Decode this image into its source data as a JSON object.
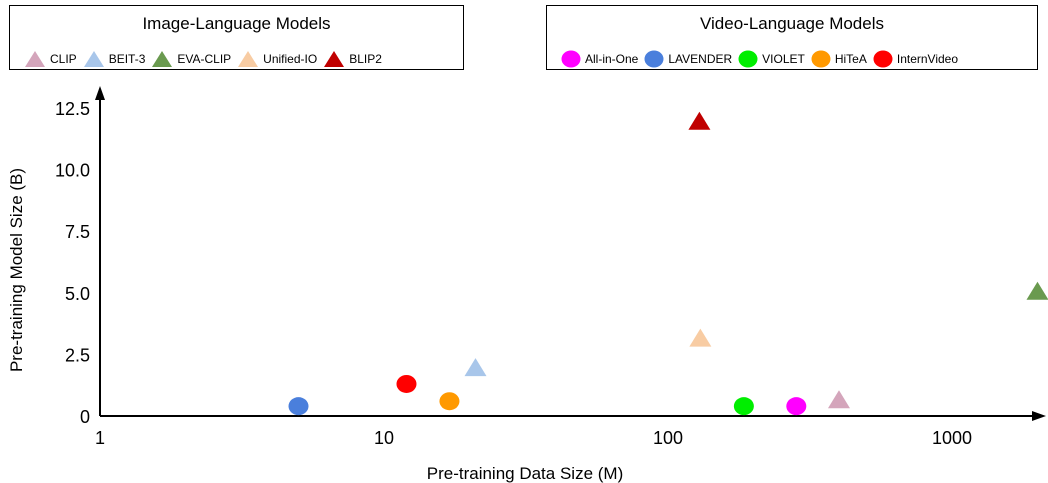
{
  "chart_data": {
    "type": "scatter",
    "xlabel": "Pre-training Data Size (M)",
    "ylabel": "Pre-training Model Size (B)",
    "x_scale": "log",
    "xlim": [
      1,
      2200
    ],
    "ylim": [
      0,
      12.5
    ],
    "x_ticks": [
      1,
      10,
      100,
      1000
    ],
    "x_tick_labels": [
      "1",
      "10",
      "100",
      "1000"
    ],
    "y_ticks": [
      0,
      2.5,
      5.0,
      7.5,
      10.0,
      12.5
    ],
    "y_tick_labels": [
      "0",
      "2.5",
      "5.0",
      "7.5",
      "10.0",
      "12.5"
    ],
    "grid": false,
    "legend_groups": [
      {
        "title": "Image-Language Models",
        "placement": "top-left",
        "marker": "triangle",
        "series": [
          "CLIP",
          "BEIT-3",
          "EVA-CLIP",
          "Unified-IO",
          "BLIP2"
        ]
      },
      {
        "title": "Video-Language Models",
        "placement": "top-right",
        "marker": "circle",
        "series": [
          "All-in-One",
          "LAVENDER",
          "VIOLET",
          "HiTeA",
          "InternVideo"
        ]
      }
    ],
    "series": [
      {
        "name": "CLIP",
        "marker": "triangle",
        "color": "#d4a5bb",
        "points": [
          {
            "x": 400,
            "y": 0.6
          }
        ]
      },
      {
        "name": "BEIT-3",
        "marker": "triangle",
        "color": "#a8c6ea",
        "points": [
          {
            "x": 21,
            "y": 1.9
          }
        ]
      },
      {
        "name": "EVA-CLIP",
        "marker": "triangle",
        "color": "#6a9a4f",
        "points": [
          {
            "x": 2000,
            "y": 5.0
          }
        ]
      },
      {
        "name": "Unified-IO",
        "marker": "triangle",
        "color": "#f8cca3",
        "points": [
          {
            "x": 130,
            "y": 3.1
          }
        ]
      },
      {
        "name": "BLIP2",
        "marker": "triangle",
        "color": "#c00000",
        "points": [
          {
            "x": 129,
            "y": 11.9
          }
        ]
      },
      {
        "name": "All-in-One",
        "marker": "circle",
        "color": "#ff00ff",
        "points": [
          {
            "x": 283,
            "y": 0.4
          }
        ]
      },
      {
        "name": "LAVENDER",
        "marker": "circle",
        "color": "#4a7fdc",
        "points": [
          {
            "x": 5,
            "y": 0.4
          }
        ]
      },
      {
        "name": "VIOLET",
        "marker": "circle",
        "color": "#00ee00",
        "points": [
          {
            "x": 185,
            "y": 0.4
          }
        ]
      },
      {
        "name": "HiTeA",
        "marker": "circle",
        "color": "#ff9900",
        "points": [
          {
            "x": 17,
            "y": 0.6
          }
        ]
      },
      {
        "name": "InternVideo",
        "marker": "circle",
        "color": "#ff0000",
        "points": [
          {
            "x": 12,
            "y": 1.3
          }
        ]
      }
    ]
  }
}
